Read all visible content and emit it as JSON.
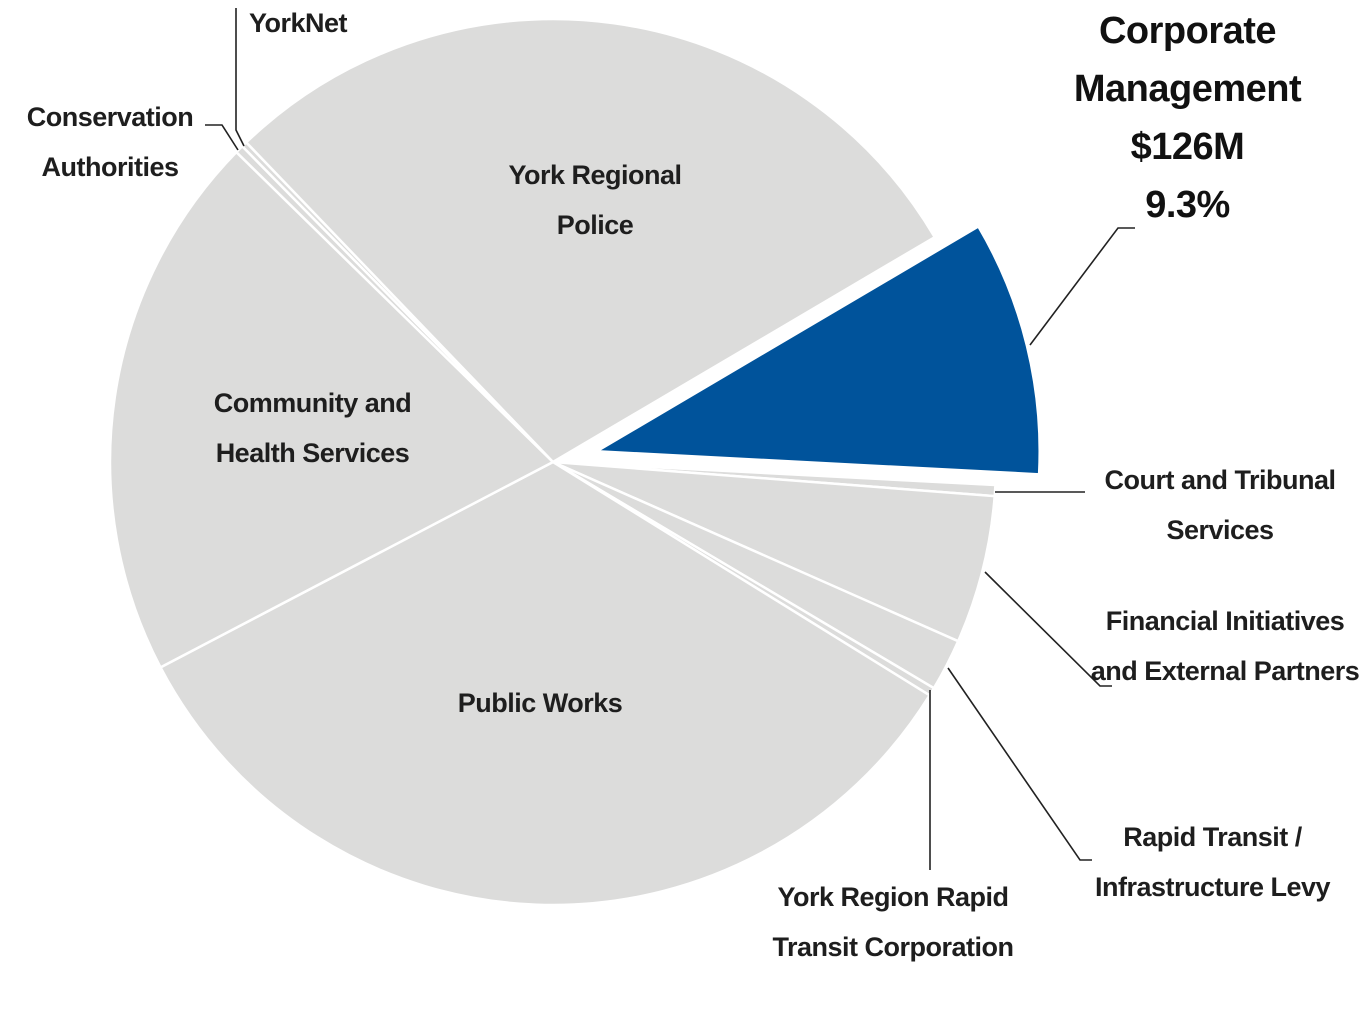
{
  "chart_data": {
    "type": "pie",
    "categories": [
      "Corporate Management",
      "Court and Tribunal Services",
      "Financial Initiatives and External Partners",
      "Rapid Transit / Infrastructure Levy",
      "York Region Rapid Transit Corporation",
      "Public Works",
      "Community and Health Services",
      "Conservation Authorities",
      "YorkNet",
      "York Regional Police"
    ],
    "values": [
      9.3,
      0.4,
      5.4,
      1.9,
      0.3,
      33.5,
      20.0,
      0.3,
      0.2,
      28.7
    ],
    "value_labels": [
      "9.3%",
      null,
      null,
      null,
      null,
      null,
      null,
      null,
      null,
      null
    ],
    "annotations": [
      "$126M"
    ],
    "colors": [
      "#00539b",
      "#dcdcdb",
      "#dcdcdb",
      "#dcdcdb",
      "#dcdcdb",
      "#dcdcdb",
      "#dcdcdb",
      "#dcdcdb",
      "#dcdcdb",
      "#dcdcdb"
    ],
    "exploded": [
      true,
      false,
      false,
      false,
      false,
      false,
      false,
      false,
      false,
      false
    ]
  }
}
